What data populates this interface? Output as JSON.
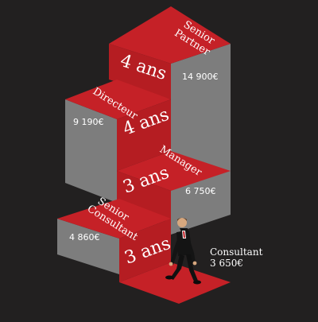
{
  "colors": {
    "background": "#222020",
    "red_top": "#c52127",
    "red_front": "#b51d22",
    "gray_side": "#7d7d7d",
    "gray_side_dark": "#6b6b6b"
  },
  "steps": [
    {
      "title_lines": [
        "Senior",
        "Consultant"
      ],
      "duration": "3 ans",
      "salary": "4 860€"
    },
    {
      "title_lines": [
        "Manager"
      ],
      "duration": "3 ans",
      "salary": "6 750€"
    },
    {
      "title_lines": [
        "Directeur"
      ],
      "duration": "4 ans",
      "salary": "9 190€"
    },
    {
      "title_lines": [
        "Senior",
        "Partner"
      ],
      "duration": "4 ans",
      "salary": "14 900€"
    }
  ],
  "consultant": {
    "title": "Consultant",
    "salary": "3 650€",
    "figure_icon": "walking-businessman-icon"
  }
}
